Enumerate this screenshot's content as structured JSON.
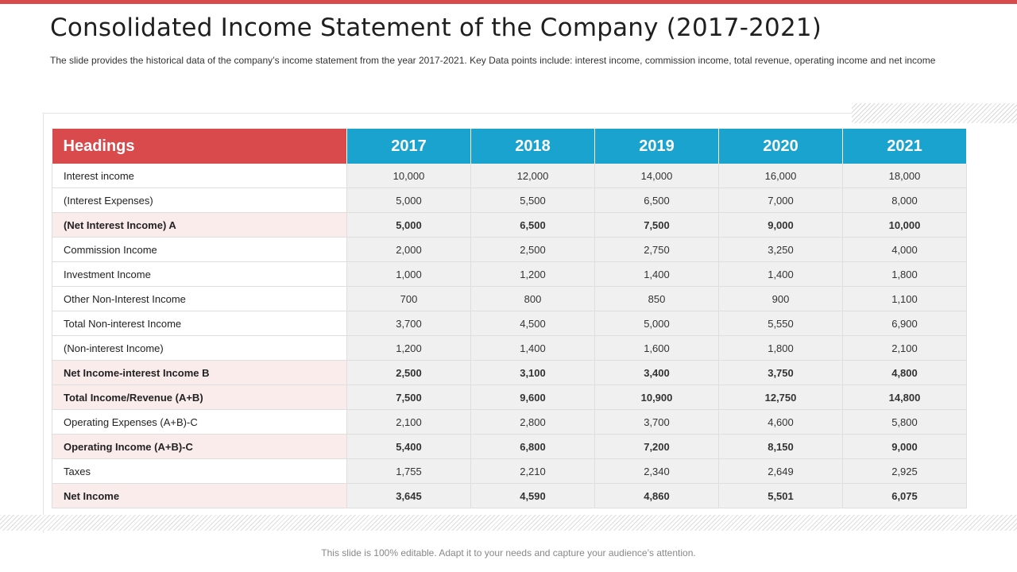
{
  "slide": {
    "title": "Consolidated Income Statement of the Company (2017-2021)",
    "subtitle": "The slide provides  the historical data of the company’s income statement from the year 2017-2021.  Key Data points include: interest income, commission income, total revenue,  operating income and net income",
    "footer": "This slide is 100% editable. Adapt it to your needs and capture your audience’s attention.",
    "accent_color": "#d94a4d",
    "header_color": "#1ba3cf"
  },
  "table": {
    "headers": [
      "Headings",
      "2017",
      "2018",
      "2019",
      "2020",
      "2021"
    ],
    "rows": [
      {
        "label": "Interest income",
        "bold": false,
        "values": [
          "10,000",
          "12,000",
          "14,000",
          "16,000",
          "18,000"
        ]
      },
      {
        "label": "(Interest Expenses)",
        "bold": false,
        "values": [
          "5,000",
          "5,500",
          "6,500",
          "7,000",
          "8,000"
        ]
      },
      {
        "label": "(Net Interest Income) A",
        "bold": true,
        "values": [
          "5,000",
          "6,500",
          "7,500",
          "9,000",
          "10,000"
        ]
      },
      {
        "label": "Commission Income",
        "bold": false,
        "values": [
          "2,000",
          "2,500",
          "2,750",
          "3,250",
          "4,000"
        ]
      },
      {
        "label": "Investment  Income",
        "bold": false,
        "values": [
          "1,000",
          "1,200",
          "1,400",
          "1,400",
          "1,800"
        ]
      },
      {
        "label": "Other Non-Interest Income",
        "bold": false,
        "values": [
          "700",
          "800",
          "850",
          "900",
          "1,100"
        ]
      },
      {
        "label": "Total Non-interest Income",
        "bold": false,
        "values": [
          "3,700",
          "4,500",
          "5,000",
          "5,550",
          "6,900"
        ]
      },
      {
        "label": "(Non-interest Income)",
        "bold": false,
        "values": [
          "1,200",
          "1,400",
          "1,600",
          "1,800",
          "2,100"
        ]
      },
      {
        "label": "Net Income-interest Income B",
        "bold": true,
        "values": [
          "2,500",
          "3,100",
          "3,400",
          "3,750",
          "4,800"
        ]
      },
      {
        "label": "Total Income/Revenue (A+B)",
        "bold": true,
        "values": [
          "7,500",
          "9,600",
          "10,900",
          "12,750",
          "14,800"
        ]
      },
      {
        "label": "Operating Expenses (A+B)-C",
        "bold": false,
        "values": [
          "2,100",
          "2,800",
          "3,700",
          "4,600",
          "5,800"
        ]
      },
      {
        "label": "Operating Income (A+B)-C",
        "bold": true,
        "values": [
          "5,400",
          "6,800",
          "7,200",
          "8,150",
          "9,000"
        ]
      },
      {
        "label": "Taxes",
        "bold": false,
        "values": [
          "1,755",
          "2,210",
          "2,340",
          "2,649",
          "2,925"
        ]
      },
      {
        "label": "Net Income",
        "bold": true,
        "values": [
          "3,645",
          "4,590",
          "4,860",
          "5,501",
          "6,075"
        ]
      }
    ]
  }
}
